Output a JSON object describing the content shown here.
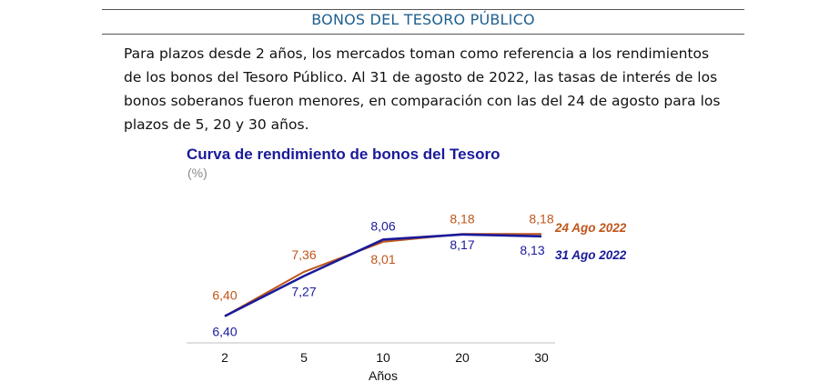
{
  "section_title": "BONOS DEL TESORO PÚBLICO",
  "paragraph": "Para plazos desde 2 años, los mercados toman como referencia a los rendimientos de los bonos del Tesoro Público. Al 31 de agosto de 2022, las tasas de interés de los bonos soberanos fueron menores, en comparación con las del 24 de agosto para los plazos de 5, 20 y 30 años.",
  "colors": {
    "series_24": "#c0551a",
    "series_31": "#1a1a9a",
    "title": "#1a1a9a",
    "heading": "#1f5f8f"
  },
  "chart_data": {
    "type": "line",
    "title": "Curva de rendimiento de bonos del Tesoro",
    "subtitle": "(%)",
    "xlabel": "Años",
    "ylabel": "",
    "categories": [
      "2",
      "5",
      "10",
      "20",
      "30"
    ],
    "ylim": [
      5.8,
      8.6
    ],
    "grid": false,
    "legend": "right",
    "series": [
      {
        "name": "24 Ago 2022",
        "values": [
          6.4,
          7.36,
          8.01,
          8.18,
          8.18
        ],
        "labels": [
          "6,40",
          "7,36",
          "8,01",
          "8,18",
          "8,18"
        ]
      },
      {
        "name": "31 Ago 2022",
        "values": [
          6.4,
          7.27,
          8.06,
          8.17,
          8.13
        ],
        "labels": [
          "6,40",
          "7,27",
          "8,06",
          "8,17",
          "8,13"
        ]
      }
    ]
  }
}
